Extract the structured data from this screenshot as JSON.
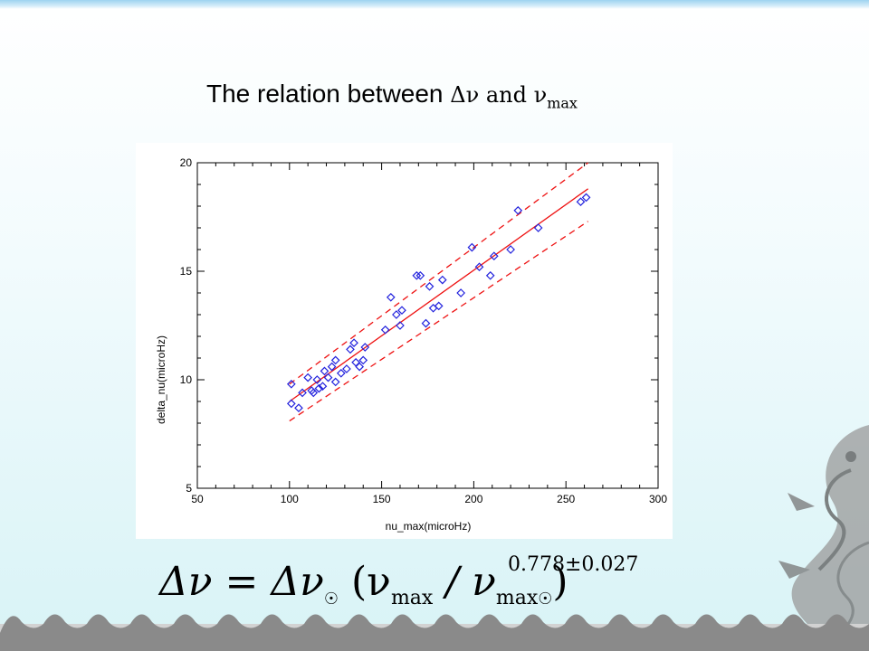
{
  "slide": {
    "title_text": "The relation between ",
    "title_delta_nu": "Δν",
    "title_and": " and ν",
    "title_sub": "max"
  },
  "formula": {
    "lhs": "Δν = Δν",
    "sun_mark": "☉",
    "paren_open": " (ν",
    "sub_max": "max",
    "slash": " / ν",
    "sub_max2": "max",
    "paren_close": ")",
    "exponent": "0.778±0.027"
  },
  "colors": {
    "points": "#2222dd",
    "fit": "#ee1111",
    "accent_topbar": "#9ed3f0",
    "wave": "#8a8a8a"
  },
  "chart_data": {
    "type": "scatter",
    "xlabel": "nu_max(microHz)",
    "ylabel": "delta_nu(microHz)",
    "xlim": [
      50,
      300
    ],
    "ylim": [
      5,
      20
    ],
    "xticks": [
      50,
      100,
      150,
      200,
      250,
      300
    ],
    "yticks": [
      5,
      10,
      15,
      20
    ],
    "marker": "diamond",
    "points": [
      [
        101,
        9.8
      ],
      [
        101,
        8.9
      ],
      [
        105,
        8.7
      ],
      [
        107,
        9.4
      ],
      [
        110,
        10.1
      ],
      [
        112,
        9.5
      ],
      [
        113,
        9.4
      ],
      [
        115,
        10.0
      ],
      [
        116,
        9.6
      ],
      [
        118,
        9.7
      ],
      [
        119,
        10.4
      ],
      [
        121,
        10.1
      ],
      [
        123,
        10.6
      ],
      [
        125,
        10.9
      ],
      [
        125,
        9.9
      ],
      [
        128,
        10.3
      ],
      [
        131,
        10.5
      ],
      [
        133,
        11.4
      ],
      [
        135,
        11.7
      ],
      [
        136,
        10.8
      ],
      [
        138,
        10.6
      ],
      [
        140,
        10.9
      ],
      [
        141,
        11.5
      ],
      [
        152,
        12.3
      ],
      [
        155,
        13.8
      ],
      [
        158,
        13.0
      ],
      [
        160,
        12.5
      ],
      [
        161,
        13.2
      ],
      [
        169,
        14.8
      ],
      [
        171,
        14.8
      ],
      [
        174,
        12.6
      ],
      [
        176,
        14.3
      ],
      [
        178,
        13.3
      ],
      [
        181,
        13.4
      ],
      [
        183,
        14.6
      ],
      [
        193,
        14.0
      ],
      [
        199,
        16.1
      ],
      [
        203,
        15.2
      ],
      [
        209,
        14.8
      ],
      [
        211,
        15.7
      ],
      [
        220,
        16.0
      ],
      [
        224,
        17.8
      ],
      [
        235,
        17.0
      ],
      [
        258,
        18.2
      ],
      [
        261,
        18.4
      ]
    ],
    "fit_line": {
      "x": [
        100,
        262
      ],
      "y": [
        9.0,
        18.8
      ]
    },
    "upper_band": {
      "x": [
        100,
        262
      ],
      "y": [
        9.8,
        20.0
      ]
    },
    "lower_band": {
      "x": [
        100,
        262
      ],
      "y": [
        8.1,
        17.3
      ]
    }
  }
}
